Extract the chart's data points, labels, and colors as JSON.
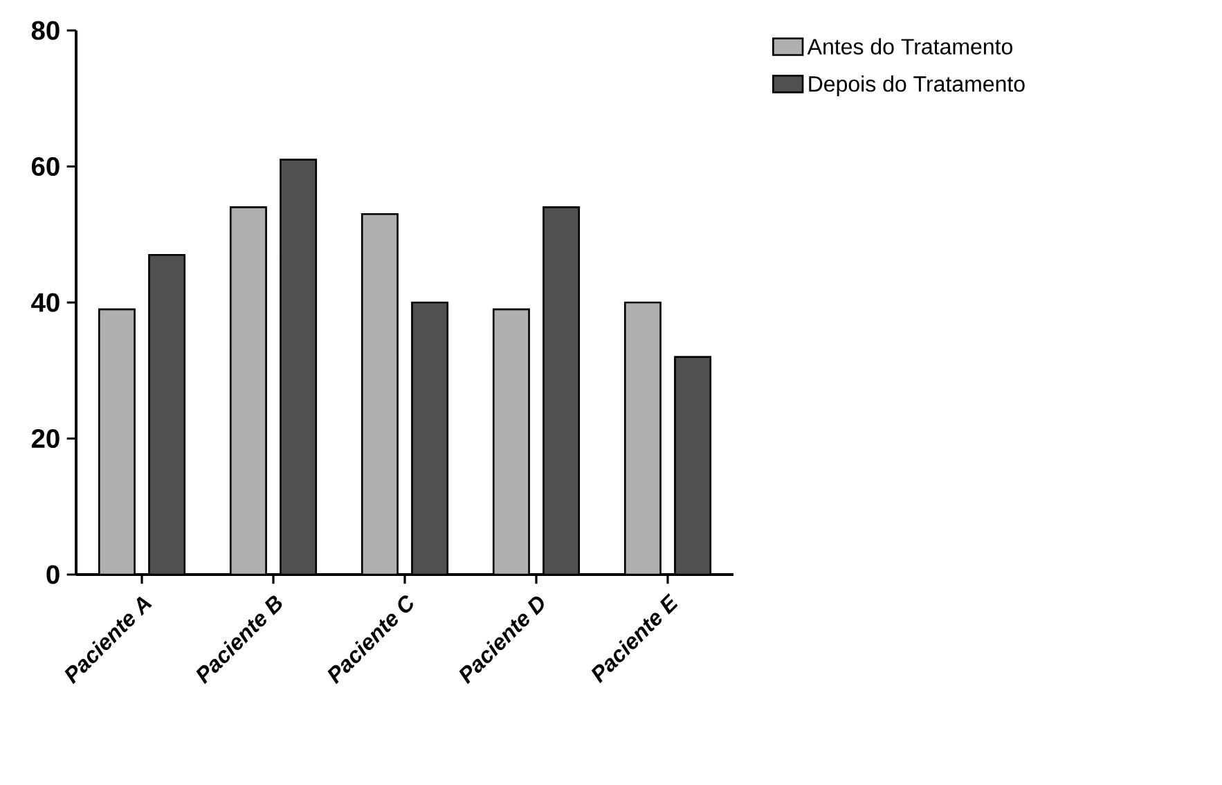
{
  "chart_data": {
    "type": "bar",
    "categories": [
      "Paciente A",
      "Paciente B",
      "Paciente C",
      "Paciente D",
      "Paciente E"
    ],
    "series": [
      {
        "name": "Antes do Tratamento",
        "color": "#b0b0b0",
        "values": [
          39,
          54,
          53,
          39,
          40
        ]
      },
      {
        "name": "Depois do Tratamento",
        "color": "#505050",
        "values": [
          47,
          61,
          40,
          54,
          32
        ]
      }
    ],
    "ylim": [
      0,
      80
    ],
    "yticks": [
      0,
      20,
      40,
      60,
      80
    ],
    "legend": "top right"
  }
}
